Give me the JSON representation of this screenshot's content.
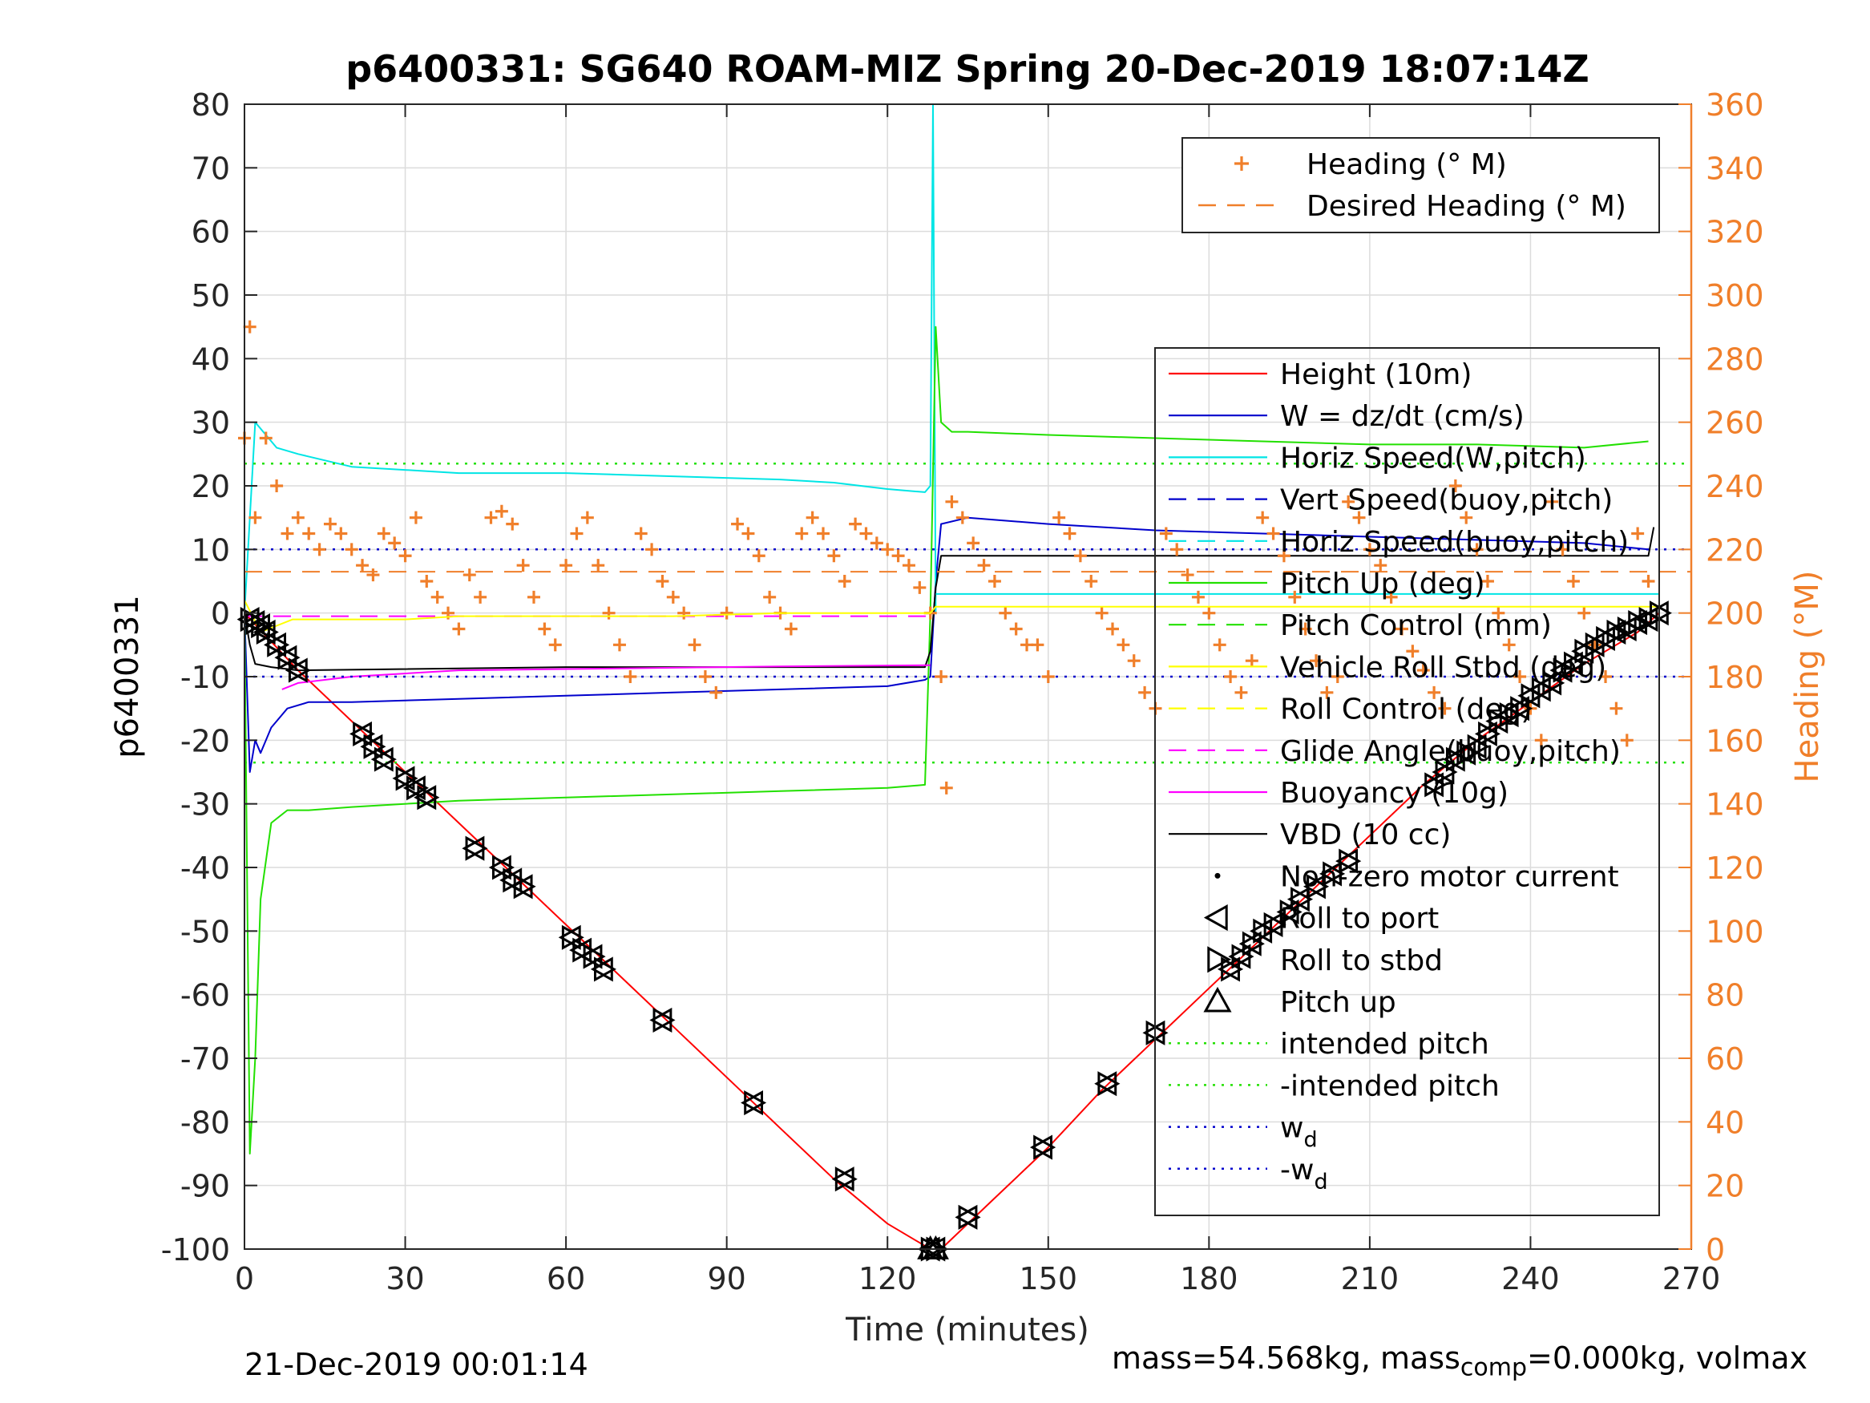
{
  "chart_data": {
    "type": "line",
    "title": "p6400331: SG640 ROAM-MIZ Spring 20-Dec-2019 18:07:14Z",
    "xlabel": "Time (minutes)",
    "ylabel_left": "p6400331",
    "ylabel_right": "Heading (°M)",
    "xlim": [
      0,
      270
    ],
    "ylim_left": [
      -100,
      80
    ],
    "ylim_right": [
      0,
      360
    ],
    "xticks": [
      "0",
      "30",
      "60",
      "90",
      "120",
      "150",
      "180",
      "210",
      "240",
      "270"
    ],
    "yticks_left": [
      "80",
      "70",
      "60",
      "50",
      "40",
      "30",
      "20",
      "10",
      "0",
      "-10",
      "-20",
      "-30",
      "-40",
      "-50",
      "-60",
      "-70",
      "-80",
      "-90",
      "-100"
    ],
    "yticks_right": [
      "360",
      "340",
      "320",
      "300",
      "280",
      "260",
      "240",
      "220",
      "200",
      "180",
      "160",
      "140",
      "120",
      "100",
      "80",
      "60",
      "40",
      "20",
      "0"
    ],
    "grid": true,
    "legend_top": {
      "placement": "top-right",
      "entries": [
        {
          "label": "Heading (° M)",
          "color": "#F07F2A",
          "style": "plus"
        },
        {
          "label": "Desired Heading (° M)",
          "color": "#F07F2A",
          "style": "dash"
        }
      ]
    },
    "legend_main": {
      "placement": "right",
      "entries": [
        {
          "label": "Height (10m)",
          "color": "#FF0000",
          "style": "solid"
        },
        {
          "label": "W = dz/dt (cm/s)",
          "color": "#0000CC",
          "style": "solid"
        },
        {
          "label": "Horiz Speed(W,pitch)",
          "color": "#00E5E5",
          "style": "solid"
        },
        {
          "label": "Vert Speed(buoy,pitch)",
          "color": "#0000CC",
          "style": "dash"
        },
        {
          "label": "Horiz Speed(buoy,pitch)",
          "color": "#00E5E5",
          "style": "dash"
        },
        {
          "label": "Pitch Up (deg)",
          "color": "#22E000",
          "style": "solid"
        },
        {
          "label": "Pitch Control (mm)",
          "color": "#22E000",
          "style": "dash"
        },
        {
          "label": "Vehicle Roll Stbd (deg)",
          "color": "#FFFF00",
          "style": "solid"
        },
        {
          "label": "Roll Control (deg)",
          "color": "#FFFF00",
          "style": "dash"
        },
        {
          "label": "Glide Angle(buoy,pitch)",
          "color": "#FF00FF",
          "style": "dash"
        },
        {
          "label": "Buoyancy (10g)",
          "color": "#FF00FF",
          "style": "solid"
        },
        {
          "label": "VBD (10 cc)",
          "color": "#000000",
          "style": "solid"
        },
        {
          "label": "Non-zero motor current",
          "color": "#000000",
          "style": "dot"
        },
        {
          "label": "Roll to port",
          "color": "#000000",
          "style": "tri-left"
        },
        {
          "label": "Roll to stbd",
          "color": "#000000",
          "style": "tri-right"
        },
        {
          "label": "Pitch up",
          "color": "#000000",
          "style": "tri-up"
        },
        {
          "label": "intended pitch",
          "color": "#22E000",
          "style": "dotted"
        },
        {
          "label": "-intended pitch",
          "color": "#22E000",
          "style": "dotted"
        },
        {
          "label": "w_d",
          "color": "#0000CC",
          "style": "dotted"
        },
        {
          "label": "-w_d",
          "color": "#0000CC",
          "style": "dotted"
        }
      ]
    },
    "series": [
      {
        "name": "Height (10m)",
        "color": "#FF0000",
        "x": [
          0,
          10,
          20,
          30,
          40,
          50,
          60,
          70,
          80,
          90,
          100,
          110,
          120,
          128,
          130,
          140,
          150,
          160,
          170,
          180,
          190,
          200,
          210,
          220,
          230,
          240,
          250,
          260,
          264
        ],
        "y": [
          0,
          -9,
          -17,
          -25,
          -33,
          -41,
          -49,
          -57,
          -65,
          -73,
          -81,
          -89,
          -96,
          -100,
          -100,
          -92,
          -84,
          -75,
          -67,
          -59,
          -51,
          -43,
          -35,
          -27,
          -20,
          -14,
          -8,
          -3,
          0
        ]
      },
      {
        "name": "W = dz/dt (cm/s)",
        "color": "#0000CC",
        "x": [
          0,
          1,
          2,
          3,
          5,
          8,
          12,
          20,
          40,
          60,
          80,
          100,
          120,
          127,
          128,
          129,
          130,
          135,
          150,
          170,
          190,
          210,
          230,
          250,
          262
        ],
        "y": [
          0,
          -25,
          -20,
          -22,
          -18,
          -15,
          -14,
          -14,
          -13.5,
          -13,
          -12.5,
          -12,
          -11.5,
          -10.5,
          -10,
          5,
          14,
          15,
          14,
          13,
          12.5,
          12,
          11.5,
          11,
          10
        ]
      },
      {
        "name": "Horiz Speed(W,pitch)",
        "color": "#00E5E5",
        "x": [
          0,
          2,
          4,
          6,
          10,
          20,
          40,
          60,
          80,
          100,
          110,
          120,
          127,
          128,
          128.5,
          129
        ],
        "y": [
          0,
          30,
          28,
          26,
          25,
          23,
          22,
          22,
          21.5,
          21,
          20.5,
          19.5,
          19,
          20,
          80,
          0
        ]
      },
      {
        "name": "Pitch Up (deg)",
        "color": "#22E000",
        "x": [
          0,
          1,
          2,
          3,
          5,
          8,
          12,
          20,
          40,
          60,
          80,
          100,
          120,
          127,
          128,
          129,
          130,
          132,
          135,
          150,
          170,
          190,
          210,
          230,
          250,
          262
        ],
        "y": [
          0,
          -85,
          -70,
          -45,
          -33,
          -31,
          -31,
          -30.5,
          -29.5,
          -29,
          -28.5,
          -28,
          -27.5,
          -27,
          0,
          45,
          30,
          28.5,
          28.5,
          28,
          27.5,
          27,
          26.5,
          26.5,
          26,
          27
        ]
      },
      {
        "name": "VBD (10 cc)",
        "color": "#000000",
        "x": [
          0,
          1,
          2,
          5,
          10,
          60,
          127,
          128,
          129,
          130,
          262,
          263
        ],
        "y": [
          0,
          -5,
          -8,
          -8.5,
          -9,
          -8.5,
          -8.5,
          -6,
          4,
          9,
          9,
          13.5
        ]
      },
      {
        "name": "Buoyancy (10g)",
        "color": "#FF00FF",
        "x": [
          7,
          10,
          20,
          40,
          60,
          80,
          100,
          128
        ],
        "y": [
          -12,
          -11,
          -10,
          -9,
          -8.8,
          -8.6,
          -8.4,
          -8.2
        ]
      },
      {
        "name": "Glide Angle(buoy,pitch)",
        "color": "#FF00FF",
        "x": [
          0,
          128
        ],
        "y": [
          -0.5,
          -0.5
        ]
      },
      {
        "name": "Horiz Speed(buoy,pitch)",
        "color": "#00E5E5",
        "x": [
          129,
          264
        ],
        "y": [
          3,
          3
        ]
      },
      {
        "name": "intended pitch",
        "color": "#22E000",
        "x": [
          0,
          270
        ],
        "y": [
          23.5,
          23.5
        ]
      },
      {
        "name": "-intended pitch",
        "color": "#22E000",
        "x": [
          0,
          270
        ],
        "y": [
          -23.5,
          -23.5
        ]
      },
      {
        "name": "w_d",
        "color": "#0000CC",
        "x": [
          0,
          270
        ],
        "y": [
          10,
          10
        ]
      },
      {
        "name": "-w_d",
        "color": "#0000CC",
        "x": [
          0,
          270
        ],
        "y": [
          -10,
          -10
        ]
      },
      {
        "name": "Desired Heading (° M)",
        "color": "#F07F2A",
        "axis": "right",
        "x": [
          0,
          270
        ],
        "y": [
          213,
          213
        ]
      },
      {
        "name": "Heading (° M)",
        "color": "#F07F2A",
        "axis": "right",
        "style": "plus",
        "x": [
          0,
          1,
          2,
          4,
          6,
          8,
          10,
          12,
          14,
          16,
          18,
          20,
          22,
          24,
          26,
          28,
          30,
          32,
          34,
          36,
          38,
          40,
          42,
          44,
          46,
          48,
          50,
          52,
          54,
          56,
          58,
          60,
          62,
          64,
          66,
          68,
          70,
          72,
          74,
          76,
          78,
          80,
          82,
          84,
          86,
          88,
          90,
          92,
          94,
          96,
          98,
          100,
          102,
          104,
          106,
          108,
          110,
          112,
          114,
          116,
          118,
          120,
          122,
          124,
          126,
          128,
          130,
          131,
          132,
          134,
          136,
          138,
          140,
          142,
          144,
          146,
          148,
          150,
          152,
          154,
          156,
          158,
          160,
          162,
          164,
          166,
          168,
          170,
          172,
          174,
          176,
          178,
          180,
          182,
          184,
          186,
          188,
          190,
          192,
          194,
          196,
          198,
          200,
          202,
          204,
          206,
          208,
          210,
          212,
          214,
          216,
          218,
          220,
          222,
          224,
          226,
          228,
          230,
          232,
          234,
          236,
          238,
          240,
          242,
          244,
          246,
          248,
          250,
          252,
          254,
          256,
          258,
          260,
          262
        ],
        "y": [
          255,
          290,
          230,
          255,
          240,
          225,
          230,
          225,
          220,
          228,
          225,
          220,
          215,
          212,
          225,
          222,
          218,
          230,
          210,
          205,
          200,
          195,
          212,
          205,
          230,
          232,
          228,
          215,
          205,
          195,
          190,
          215,
          225,
          230,
          215,
          200,
          190,
          180,
          225,
          220,
          210,
          205,
          200,
          190,
          180,
          175,
          200,
          228,
          225,
          218,
          205,
          200,
          195,
          225,
          230,
          225,
          218,
          210,
          228,
          225,
          222,
          220,
          218,
          215,
          208,
          200,
          180,
          145,
          235,
          230,
          222,
          215,
          210,
          200,
          195,
          190,
          190,
          180,
          230,
          225,
          218,
          210,
          200,
          195,
          190,
          185,
          175,
          170,
          225,
          220,
          212,
          205,
          200,
          190,
          180,
          175,
          185,
          230,
          225,
          218,
          205,
          195,
          185,
          175,
          180,
          235,
          230,
          220,
          215,
          205,
          195,
          188,
          182,
          175,
          170,
          240,
          230,
          220,
          210,
          200,
          190,
          180,
          170,
          160,
          235,
          220,
          210,
          200,
          190,
          180,
          170,
          160,
          225,
          210
        ]
      },
      {
        "name": "Vehicle Roll Stbd (deg)",
        "color": "#FFFF00",
        "x": [
          0,
          3,
          6,
          9,
          20,
          30,
          40,
          60,
          80,
          100,
          128,
          129,
          150,
          200,
          264
        ],
        "y": [
          2,
          -3,
          -2,
          -1,
          -1,
          -1,
          -0.5,
          -0.5,
          -0.5,
          0,
          0,
          1,
          1,
          1,
          1
        ]
      },
      {
        "name": "Non-zero motor current / Roll / Pitch markers",
        "color": "#000000",
        "x": [
          1,
          2,
          3,
          4,
          6,
          8,
          10,
          22,
          24,
          26,
          30,
          32,
          34,
          43,
          48,
          50,
          52,
          61,
          63,
          65,
          67,
          78,
          95,
          112,
          128,
          129,
          135,
          149,
          161,
          170,
          184,
          186,
          188,
          190,
          192,
          195,
          197,
          200,
          203,
          206,
          222,
          224,
          226,
          228,
          230,
          232,
          234,
          236,
          238,
          240,
          242,
          244,
          246,
          248,
          250,
          252,
          254,
          256,
          258,
          260,
          262,
          264
        ],
        "y": [
          -1,
          -1.5,
          -2,
          -3,
          -5,
          -7,
          -9,
          -19,
          -21,
          -23,
          -26,
          -27.5,
          -29,
          -37,
          -40,
          -42,
          -43,
          -51,
          -53,
          -54,
          -56,
          -64,
          -77,
          -89,
          -100,
          -100,
          -95,
          -84,
          -74,
          -66,
          -56,
          -54,
          -52,
          -50,
          -49,
          -47,
          -45,
          -43,
          -41,
          -39,
          -27,
          -25,
          -23,
          -22,
          -21,
          -19,
          -17,
          -16,
          -15,
          -13,
          -12,
          -11,
          -9,
          -8,
          -6,
          -5,
          -4,
          -3,
          -2.5,
          -1.5,
          -1,
          0
        ]
      }
    ]
  },
  "footer": {
    "timestamp": "21-Dec-2019 00:01:14",
    "mass_prefix": "mass=54.568kg, mass",
    "mass_sub": "comp",
    "mass_suffix": "=0.000kg, volmax"
  }
}
